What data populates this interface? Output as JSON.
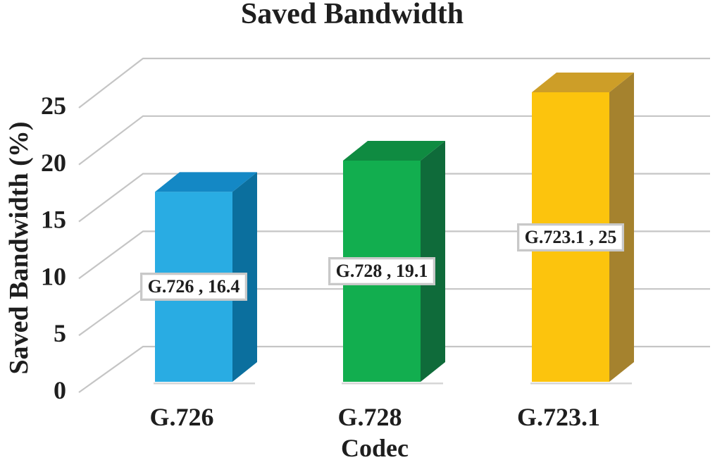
{
  "chart_data": {
    "type": "bar",
    "variant": "3d-column",
    "title": "Saved Bandwidth",
    "xlabel": "Codec",
    "ylabel": "Saved Bandwidth (%)",
    "categories": [
      "G.726",
      "G.728",
      "G.723.1"
    ],
    "values": [
      16.4,
      19.1,
      25
    ],
    "point_labels": [
      "G.726 , 16.4",
      "G.728 , 19.1",
      "G.723.1 , 25"
    ],
    "yticks": [
      0,
      5,
      10,
      15,
      20,
      25
    ],
    "ylim": [
      0,
      25
    ],
    "grid": true,
    "legend": false,
    "colors": {
      "series": [
        {
          "front": "#29ACE3",
          "top": "#1488C5",
          "side": "#0B6F9E"
        },
        {
          "front": "#12AE4F",
          "top": "#0F8B41",
          "side": "#0F6B3A"
        },
        {
          "front": "#FCC40D",
          "top": "#CD9E28",
          "side": "#A5822E"
        }
      ],
      "gridline": "#C5C5C5",
      "floor_shadow": "#D6D6D6",
      "text": "#1E1E1E",
      "label_box_bg": "#FFFFFF",
      "label_box_border": "#C8C8C8"
    }
  }
}
